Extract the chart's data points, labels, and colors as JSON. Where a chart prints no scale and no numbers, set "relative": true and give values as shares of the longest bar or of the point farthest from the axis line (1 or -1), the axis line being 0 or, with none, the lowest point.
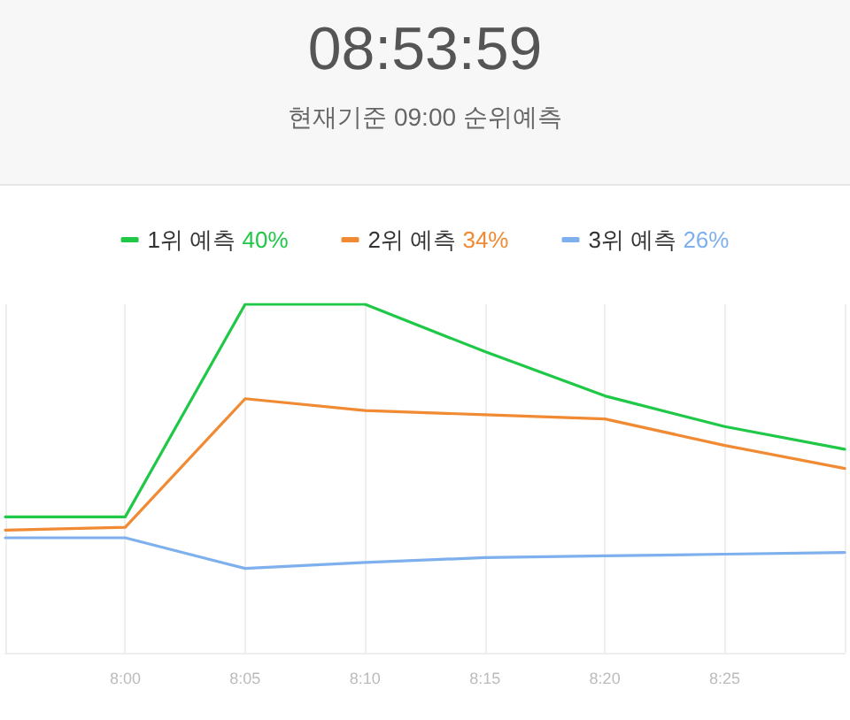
{
  "chart_data": {
    "type": "line",
    "title": "08:53:59",
    "subtitle": "현재기준 09:00 순위예측",
    "categories": [
      null,
      "8:00",
      "8:05",
      "8:10",
      "8:15",
      "8:20",
      "8:25",
      null
    ],
    "relative": true,
    "grid": "x",
    "legend": "top",
    "marker": "none",
    "line_style": "solid",
    "series": [
      {
        "name": "1위 예측 40%",
        "color": "#1fc846",
        "values": [
          0.39,
          0.39,
          1,
          1,
          0.864,
          0.737,
          0.649,
          0.584
        ]
      },
      {
        "name": "2위 예측 34%",
        "color": "#f08a33",
        "values": [
          0.352,
          0.36,
          0.729,
          0.695,
          0.683,
          0.671,
          0.595,
          0.529
        ]
      },
      {
        "name": "3위 예측 26%",
        "color": "#7eb0ee",
        "values": [
          0.33,
          0.33,
          0.242,
          0.259,
          0.273,
          0.278,
          0.283,
          0.288
        ]
      }
    ]
  }
}
